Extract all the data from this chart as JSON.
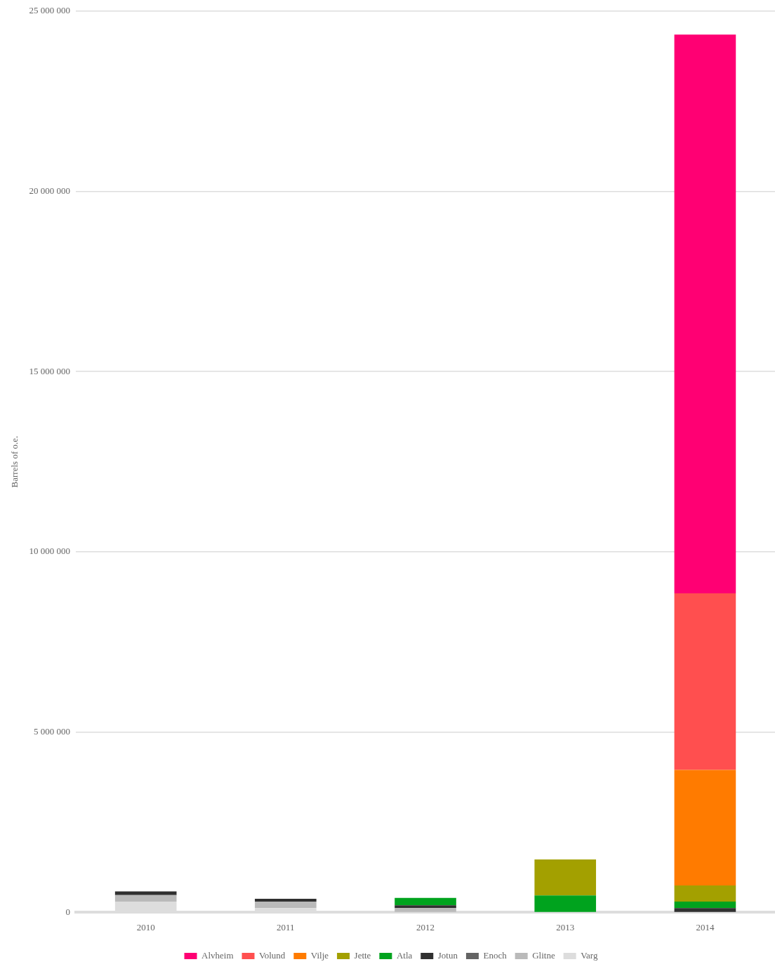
{
  "chart_data": {
    "type": "bar",
    "stacked": true,
    "ylabel": "Barrels of o.e.",
    "categories": [
      "2010",
      "2011",
      "2012",
      "2013",
      "2014"
    ],
    "series": [
      {
        "name": "Varg",
        "color": "#dddddd",
        "values": [
          300000,
          120000,
          0,
          0,
          0
        ]
      },
      {
        "name": "Glitne",
        "color": "#bababa",
        "values": [
          180000,
          180000,
          120000,
          0,
          0
        ]
      },
      {
        "name": "Enoch",
        "color": "#646464",
        "values": [
          0,
          0,
          0,
          0,
          0
        ]
      },
      {
        "name": "Jotun",
        "color": "#303030",
        "values": [
          100000,
          80000,
          80000,
          0,
          120000
        ]
      },
      {
        "name": "Atla",
        "color": "#00a31e",
        "values": [
          0,
          0,
          200000,
          470000,
          180000
        ]
      },
      {
        "name": "Jette",
        "color": "#a3a000",
        "values": [
          0,
          0,
          0,
          1000000,
          450000
        ]
      },
      {
        "name": "Vilje",
        "color": "#ff7b00",
        "values": [
          0,
          0,
          0,
          0,
          3200000
        ]
      },
      {
        "name": "Volund",
        "color": "#ff4f4f",
        "values": [
          0,
          0,
          0,
          0,
          4900000
        ]
      },
      {
        "name": "Alvheim",
        "color": "#ff0073",
        "values": [
          0,
          0,
          0,
          0,
          15500000
        ]
      }
    ],
    "ylim": [
      0,
      25000000
    ],
    "yticks": [
      {
        "value": 0,
        "label": "0"
      },
      {
        "value": 5000000,
        "label": "5 000 000"
      },
      {
        "value": 10000000,
        "label": "10 000 000"
      },
      {
        "value": 15000000,
        "label": "15 000 000"
      },
      {
        "value": 20000000,
        "label": "20 000 000"
      },
      {
        "value": 25000000,
        "label": "25 000 000"
      }
    ],
    "grid": "y",
    "legend": "bottom"
  }
}
